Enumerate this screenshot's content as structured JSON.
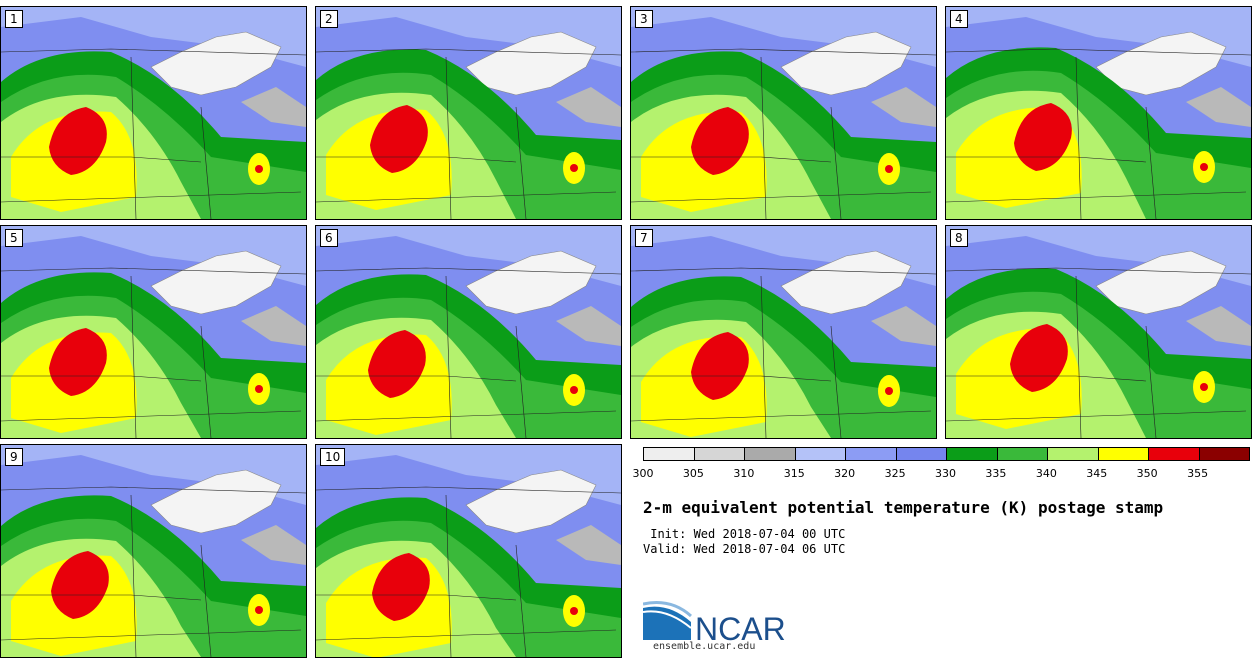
{
  "panels": [
    {
      "label": "1"
    },
    {
      "label": "2"
    },
    {
      "label": "3"
    },
    {
      "label": "4"
    },
    {
      "label": "5"
    },
    {
      "label": "6"
    },
    {
      "label": "7"
    },
    {
      "label": "8"
    },
    {
      "label": "9"
    },
    {
      "label": "10"
    }
  ],
  "colorbar": {
    "colors": [
      "#eeeeee",
      "#d6d6d6",
      "#aaaaaa",
      "#b4c2f8",
      "#8c9cf4",
      "#7585ee",
      "#0b9d18",
      "#3ab93a",
      "#b4f26e",
      "#ffff00",
      "#e8000b",
      "#8b0000"
    ],
    "ticks": [
      "300",
      "305",
      "310",
      "315",
      "320",
      "325",
      "330",
      "335",
      "340",
      "345",
      "350",
      "355"
    ]
  },
  "title": "2-m equivalent potential temperature (K) postage stamp",
  "init": " Init: Wed 2018-07-04 00 UTC",
  "valid": "Valid: Wed 2018-07-04 06 UTC",
  "logo_text": "NCAR",
  "url": "ensemble.ucar.edu"
}
